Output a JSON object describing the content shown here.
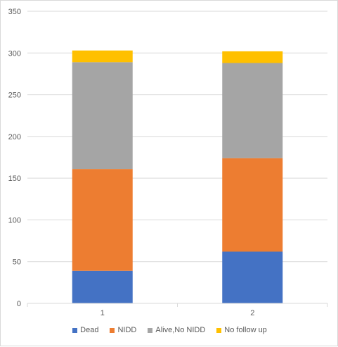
{
  "chart_data": {
    "type": "bar",
    "stacked": true,
    "categories": [
      "1",
      "2"
    ],
    "series": [
      {
        "name": "Dead",
        "values": [
          39,
          62
        ],
        "color": "#4472C4"
      },
      {
        "name": "NIDD",
        "values": [
          122,
          112
        ],
        "color": "#ED7D31"
      },
      {
        "name": "Alive,No NIDD",
        "values": [
          128,
          114
        ],
        "color": "#A5A5A5"
      },
      {
        "name": "No follow up",
        "values": [
          14,
          14
        ],
        "color": "#FFC000"
      }
    ],
    "ylim": [
      0,
      350
    ],
    "yticks": [
      "0",
      "50",
      "100",
      "150",
      "200",
      "250",
      "300",
      "350"
    ],
    "grid": true,
    "legend_position": "bottom",
    "title": "",
    "xlabel": "",
    "ylabel": ""
  }
}
